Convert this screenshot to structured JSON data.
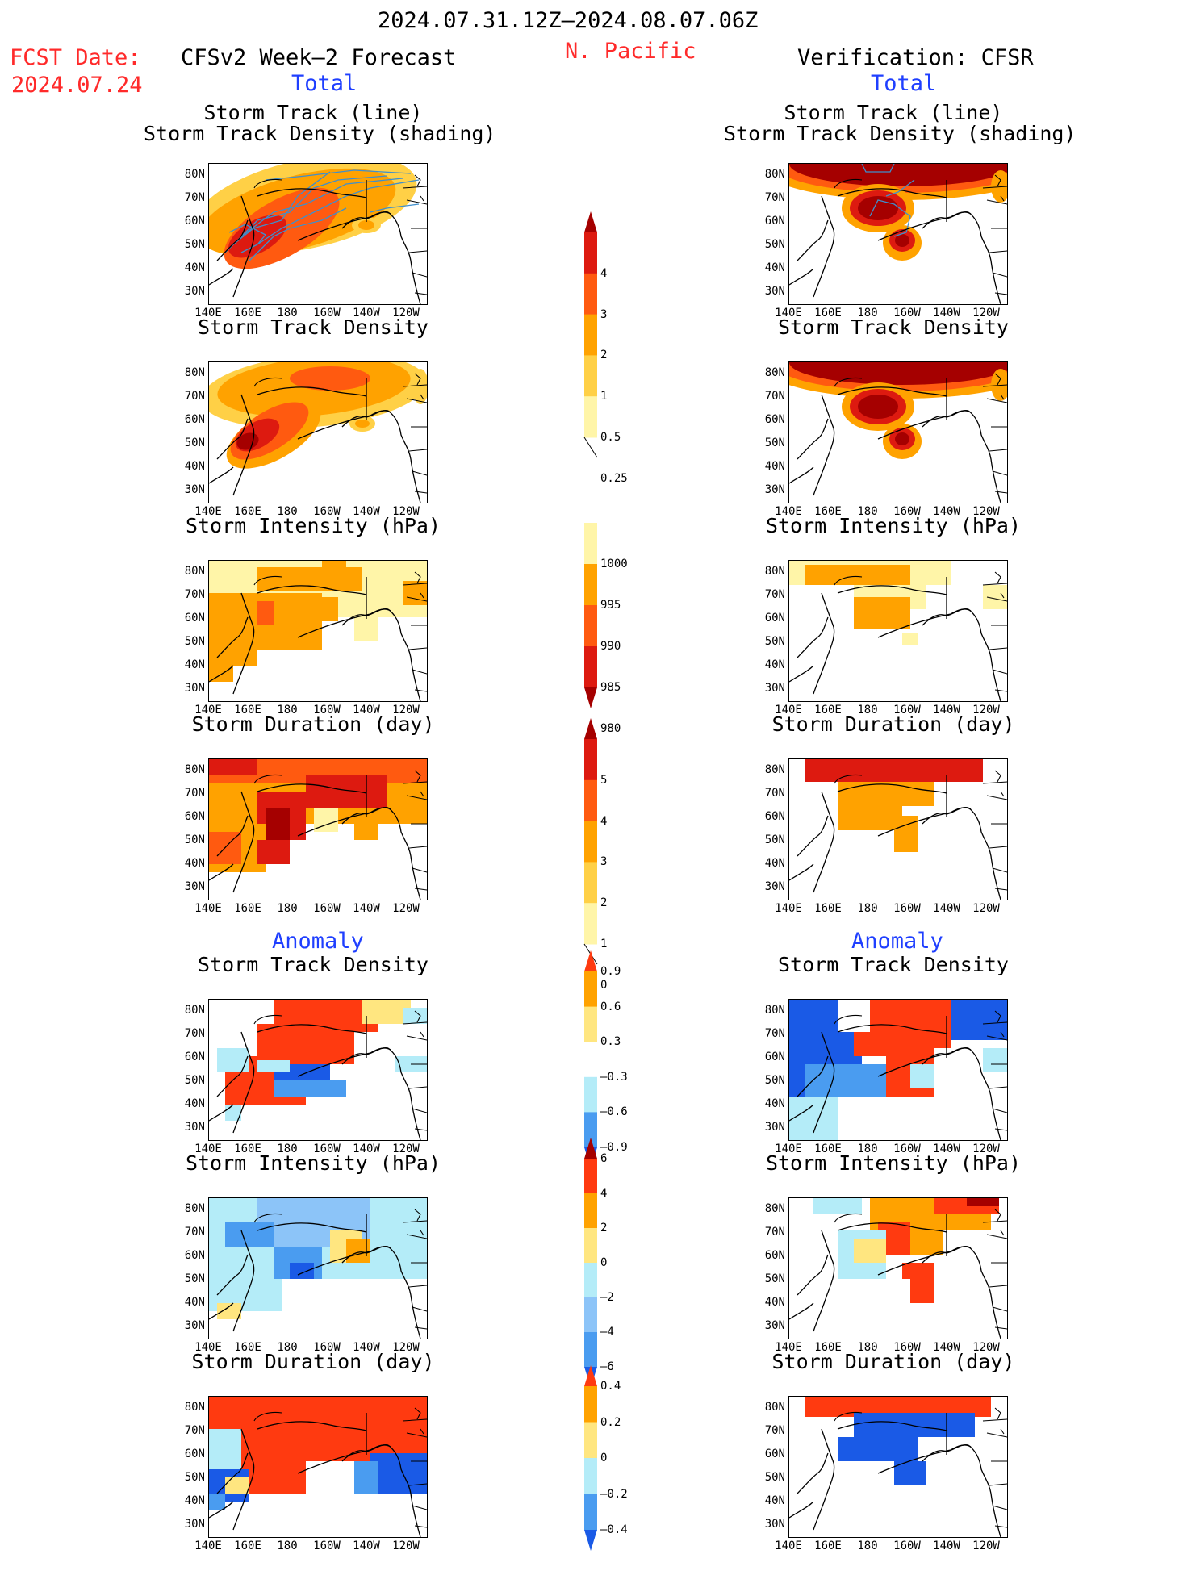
{
  "header": {
    "period": "2024.07.31.12Z–2024.08.07.06Z",
    "fcst_date_label": "FCST Date:",
    "fcst_date_value": "2024.07.24",
    "forecast_title": "CFSv2 Week–2 Forecast",
    "region": "N. Pacific",
    "verification_title": "Verification: CFSR"
  },
  "sections": {
    "total": "Total",
    "anomaly": "Anomaly"
  },
  "panel_titles": {
    "track_line": "Storm Track (line)",
    "track_shading": "Storm Track Density (shading)",
    "density": "Storm Track Density",
    "intensity": "Storm Intensity (hPa)",
    "duration": "Storm Duration (day)"
  },
  "axes": {
    "lat_labels": [
      "80N",
      "70N",
      "60N",
      "50N",
      "40N",
      "30N"
    ],
    "lon_labels": [
      "140E",
      "160E",
      "180",
      "160W",
      "140W",
      "120W"
    ]
  },
  "colorbars": {
    "density_total": {
      "labels": [
        "4",
        "3",
        "2",
        "1",
        "0.5",
        "0.25"
      ],
      "colors": [
        "#a50000",
        "#dd1a10",
        "#ff5a10",
        "#ffa200",
        "#ffd046",
        "#fff5a8"
      ]
    },
    "intensity_total": {
      "labels": [
        "1000",
        "995",
        "990",
        "985",
        "980"
      ],
      "colors": [
        "#fff5a8",
        "#ffa200",
        "#ff5a10",
        "#dd1a10",
        "#a50000"
      ]
    },
    "duration_total": {
      "labels": [
        "5",
        "4",
        "3",
        "2",
        "1",
        "0"
      ],
      "colors": [
        "#a50000",
        "#dd1a10",
        "#ff5a10",
        "#ffa200",
        "#ffd046",
        "#fff5a8"
      ]
    },
    "density_anom": {
      "labels": [
        "0.9",
        "0.6",
        "0.3",
        "–0.3",
        "–0.6",
        "–0.9"
      ],
      "colors": [
        "#ff3a10",
        "#ffa200",
        "#ffe680",
        "#ffffff",
        "#b4ecf8",
        "#4a9cf0",
        "#1a5ae6"
      ]
    },
    "intensity_anom": {
      "labels": [
        "6",
        "4",
        "2",
        "0",
        "–2",
        "–4",
        "–6"
      ],
      "colors": [
        "#a50000",
        "#ff3a10",
        "#ffa200",
        "#ffe680",
        "#b4ecf8",
        "#8cc4f8",
        "#4a9cf0",
        "#1a5ae6"
      ]
    },
    "duration_anom": {
      "labels": [
        "0.4",
        "0.2",
        "0",
        "–0.2",
        "–0.4"
      ],
      "colors": [
        "#ff3a10",
        "#ffa200",
        "#ffe680",
        "#b4ecf8",
        "#4a9cf0",
        "#1a5ae6"
      ]
    }
  }
}
